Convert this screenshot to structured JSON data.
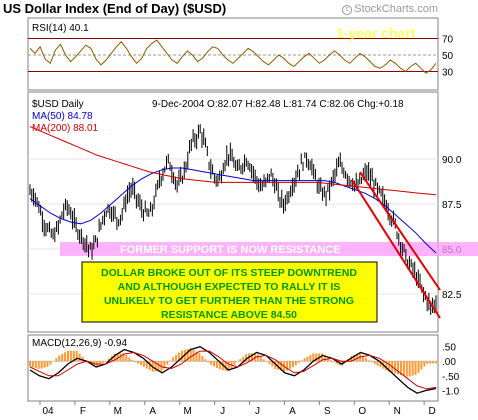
{
  "header": {
    "title": "US Dollar Index (End of Day) ($USD)",
    "credit": "StockCharts.com",
    "credit_symbol": "c"
  },
  "chart_data": [
    {
      "type": "line",
      "panel": "rsi",
      "label": "RSI(14)",
      "last_value": "40.1",
      "badge": "1-year chart",
      "badge_color": "#ffff66",
      "levels": [
        70,
        50,
        30
      ],
      "ylim": [
        10,
        90
      ],
      "y_ticks": [
        "70",
        "50",
        "30"
      ],
      "values": [
        58,
        52,
        60,
        45,
        40,
        56,
        63,
        50,
        42,
        48,
        55,
        62,
        58,
        45,
        38,
        44,
        52,
        60,
        66,
        58,
        48,
        40,
        46,
        58,
        64,
        68,
        60,
        52,
        44,
        40,
        48,
        55,
        50,
        42,
        46,
        54,
        60,
        58,
        50,
        44,
        40,
        46,
        52,
        58,
        54,
        48,
        42,
        38,
        44,
        50,
        46,
        40,
        36,
        42,
        48,
        52,
        46,
        40,
        44,
        50,
        55,
        50,
        44,
        40,
        46,
        52,
        48,
        42,
        36,
        34,
        38,
        44,
        40,
        34,
        30,
        36,
        40,
        34,
        28,
        32,
        40
      ]
    },
    {
      "type": "line",
      "panel": "price",
      "symbol_label": "$USD Daily",
      "date_label": "9-Dec-2004",
      "ohlc_text": "O:82.07 H:82.48 L:81.74 C:82.06 Chg:+0.18",
      "ylim": [
        80.5,
        93.5
      ],
      "y_ticks": [
        "90.0",
        "87.5",
        "85.0",
        "82.5"
      ],
      "x_ticks": [
        "04",
        "F",
        "M",
        "A",
        "M",
        "J",
        "J",
        "A",
        "S",
        "O",
        "N",
        "D"
      ],
      "close": [
        88.2,
        88.0,
        87.3,
        86.5,
        86.0,
        85.7,
        86.1,
        87.0,
        87.4,
        86.9,
        86.2,
        85.8,
        85.4,
        84.9,
        85.2,
        86.0,
        86.9,
        87.3,
        87.0,
        86.6,
        87.0,
        87.9,
        88.4,
        87.9,
        87.3,
        87.0,
        86.9,
        87.7,
        88.8,
        89.4,
        89.9,
        89.2,
        88.5,
        89.0,
        89.8,
        90.9,
        91.2,
        91.6,
        90.7,
        89.6,
        89.0,
        88.8,
        89.7,
        90.3,
        89.9,
        89.3,
        89.7,
        90.0,
        89.5,
        88.9,
        88.4,
        88.6,
        89.2,
        88.7,
        87.8,
        87.5,
        88.0,
        88.7,
        89.2,
        89.8,
        90.1,
        89.6,
        88.8,
        88.2,
        88.0,
        88.4,
        89.1,
        89.7,
        89.4,
        89.0,
        88.7,
        88.4,
        88.9,
        89.3,
        88.9,
        88.4,
        88.0,
        87.6,
        87.0,
        86.4,
        85.6,
        84.9,
        84.2,
        83.9,
        83.3,
        82.7,
        82.2,
        81.7,
        82.06
      ],
      "series": [
        {
          "name": "MA(50) 84.78",
          "color": "#0000cc",
          "values": [
            87.8,
            87.4,
            87.0,
            86.7,
            86.5,
            86.4,
            86.6,
            87.0,
            87.5,
            88.0,
            88.5,
            88.9,
            89.2,
            89.4,
            89.5,
            89.5,
            89.4,
            89.3,
            89.2,
            89.1,
            89.0,
            88.9,
            88.8,
            88.8,
            88.8,
            88.8,
            88.8,
            88.8,
            88.8,
            88.8,
            88.7,
            88.5,
            88.3,
            88.1,
            87.8,
            87.4,
            86.9,
            86.4,
            85.9,
            85.3,
            84.78
          ]
        },
        {
          "name": "MA(200) 88.01",
          "color": "#cc0000",
          "values": [
            91.8,
            91.4,
            91.0,
            90.6,
            90.2,
            89.9,
            89.6,
            89.3,
            89.1,
            88.9,
            88.8,
            88.7,
            88.7,
            88.7,
            88.7,
            88.7,
            88.7,
            88.7,
            88.6,
            88.5,
            88.4,
            88.3,
            88.2,
            88.1,
            88.01
          ]
        }
      ],
      "resistance_text": "FORMER SUPPORT IS NOW RESISTANCE",
      "resistance_level": 85.0,
      "resistance_color": "#ff99ff",
      "annotation": [
        "DOLLAR BROKE OUT OF ITS STEEP DOWNTREND",
        "AND ALTHOUGH EXPECTED TO RALLY IT IS",
        "UNLIKELY TO GET FURTHER THAN THE STRONG",
        "RESISTANCE ABOVE 84.50"
      ],
      "annotation_bg": "#ffff00",
      "annotation_color": "#009900"
    },
    {
      "type": "area",
      "panel": "macd",
      "label": "MACD(12,26,9)",
      "last_value": "-0.94",
      "ylim": [
        -1.3,
        0.8
      ],
      "y_ticks": [
        ".50",
        ".00",
        "-.50",
        "-1.0"
      ],
      "macd": [
        -0.3,
        -0.5,
        -0.6,
        -0.4,
        -0.1,
        0.1,
        0.0,
        -0.2,
        -0.1,
        0.2,
        0.4,
        0.3,
        0.1,
        -0.2,
        -0.4,
        -0.2,
        0.1,
        0.4,
        0.5,
        0.3,
        0.0,
        -0.3,
        -0.2,
        0.1,
        0.3,
        0.2,
        -0.1,
        -0.4,
        -0.5,
        -0.3,
        0.0,
        0.2,
        0.1,
        -0.1,
        0.1,
        0.3,
        0.2,
        0.0,
        -0.3,
        -0.6,
        -0.9,
        -1.1,
        -1.0,
        -0.94
      ],
      "signal": [
        -0.2,
        -0.35,
        -0.5,
        -0.5,
        -0.3,
        -0.1,
        0.0,
        -0.1,
        -0.1,
        0.05,
        0.25,
        0.3,
        0.2,
        0.0,
        -0.2,
        -0.25,
        -0.1,
        0.15,
        0.35,
        0.35,
        0.15,
        -0.1,
        -0.2,
        -0.05,
        0.15,
        0.2,
        0.05,
        -0.2,
        -0.4,
        -0.35,
        -0.15,
        0.05,
        0.1,
        0.0,
        0.0,
        0.15,
        0.2,
        0.1,
        -0.1,
        -0.35,
        -0.6,
        -0.85,
        -0.95,
        -0.9
      ]
    }
  ]
}
